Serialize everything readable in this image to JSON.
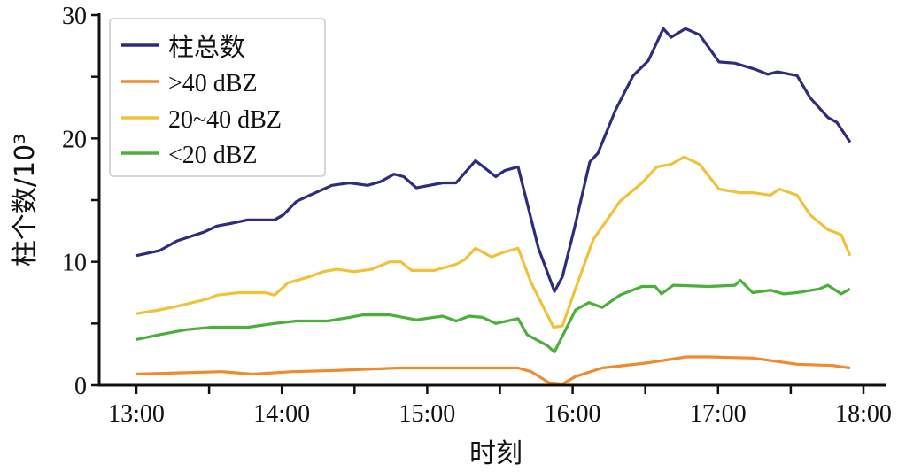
{
  "chart_data": {
    "type": "line",
    "title": "",
    "xlabel": "时刻",
    "ylabel": "柱个数/10³",
    "ylim": [
      0,
      30
    ],
    "xlim_minutes_after_1300": [
      0,
      300
    ],
    "xticks": [
      "13:00",
      "14:00",
      "15:00",
      "16:00",
      "17:00",
      "18:00"
    ],
    "yticks": [
      "0",
      "10",
      "20",
      "30"
    ],
    "legend_position": "top-left",
    "grid": false,
    "series": [
      {
        "name": "柱总数",
        "color": "#2f2c7e",
        "points": [
          [
            0,
            10.5
          ],
          [
            9.5,
            10.9
          ],
          [
            16.8,
            11.7
          ],
          [
            27.8,
            12.4
          ],
          [
            33.2,
            12.9
          ],
          [
            38.7,
            13.1
          ],
          [
            46,
            13.4
          ],
          [
            57,
            13.4
          ],
          [
            60.6,
            13.8
          ],
          [
            66.1,
            14.9
          ],
          [
            71.6,
            15.4
          ],
          [
            80.7,
            16.2
          ],
          [
            88,
            16.4
          ],
          [
            95.4,
            16.2
          ],
          [
            100.8,
            16.5
          ],
          [
            106.3,
            17.1
          ],
          [
            110.3,
            16.9
          ],
          [
            115.5,
            16.0
          ],
          [
            126.4,
            16.4
          ],
          [
            131.9,
            16.4
          ],
          [
            139.9,
            18.2
          ],
          [
            148.3,
            16.9
          ],
          [
            152,
            17.4
          ],
          [
            157.5,
            17.7
          ],
          [
            165.9,
            11.1
          ],
          [
            172.5,
            7.6
          ],
          [
            175.8,
            8.8
          ],
          [
            180.6,
            12.6
          ],
          [
            187.1,
            18.1
          ],
          [
            190.4,
            18.8
          ],
          [
            197.7,
            22.3
          ],
          [
            205,
            25.1
          ],
          [
            211.2,
            26.3
          ],
          [
            217.4,
            28.9
          ],
          [
            220.6,
            28.2
          ],
          [
            226.6,
            28.9
          ],
          [
            232.4,
            28.4
          ],
          [
            240.4,
            26.2
          ],
          [
            247,
            26.1
          ],
          [
            255.4,
            25.6
          ],
          [
            260.5,
            25.2
          ],
          [
            264.5,
            25.4
          ],
          [
            272.6,
            25.1
          ],
          [
            278,
            23.3
          ],
          [
            285.3,
            21.7
          ],
          [
            289,
            21.3
          ],
          [
            294.5,
            19.7
          ]
        ]
      },
      {
        "name": ">40 dBZ",
        "color": "#f08a2e",
        "points": [
          [
            0,
            0.9
          ],
          [
            16.8,
            1.0
          ],
          [
            35.1,
            1.1
          ],
          [
            47.9,
            0.9
          ],
          [
            64.3,
            1.1
          ],
          [
            82.6,
            1.2
          ],
          [
            108.2,
            1.4
          ],
          [
            141.1,
            1.4
          ],
          [
            157.5,
            1.4
          ],
          [
            162.9,
            1.1
          ],
          [
            170.2,
            0.2
          ],
          [
            175.8,
            0.1
          ],
          [
            181.2,
            0.7
          ],
          [
            192.2,
            1.4
          ],
          [
            210.4,
            1.8
          ],
          [
            226.9,
            2.3
          ],
          [
            236.1,
            2.3
          ],
          [
            254.3,
            2.2
          ],
          [
            272.6,
            1.7
          ],
          [
            287.2,
            1.6
          ],
          [
            294.5,
            1.4
          ]
        ]
      },
      {
        "name": "20~40 dBZ",
        "color": "#f0c23a",
        "points": [
          [
            0,
            5.8
          ],
          [
            9.5,
            6.1
          ],
          [
            16.8,
            6.4
          ],
          [
            29.6,
            7.0
          ],
          [
            33.2,
            7.3
          ],
          [
            42.4,
            7.5
          ],
          [
            53.3,
            7.5
          ],
          [
            57,
            7.3
          ],
          [
            62.5,
            8.3
          ],
          [
            71.6,
            8.8
          ],
          [
            77.1,
            9.2
          ],
          [
            82.6,
            9.4
          ],
          [
            89.9,
            9.2
          ],
          [
            97.2,
            9.4
          ],
          [
            104.5,
            10.0
          ],
          [
            109.2,
            10.0
          ],
          [
            113.6,
            9.3
          ],
          [
            122.8,
            9.3
          ],
          [
            131.9,
            9.8
          ],
          [
            135.6,
            10.2
          ],
          [
            139.9,
            11.1
          ],
          [
            146.5,
            10.4
          ],
          [
            152,
            10.8
          ],
          [
            157.5,
            11.1
          ],
          [
            162.9,
            8.3
          ],
          [
            172.1,
            4.7
          ],
          [
            175.8,
            4.8
          ],
          [
            180.6,
            7.5
          ],
          [
            188.5,
            11.8
          ],
          [
            199.5,
            14.9
          ],
          [
            208.6,
            16.4
          ],
          [
            214.8,
            17.7
          ],
          [
            220.6,
            17.9
          ],
          [
            226,
            18.5
          ],
          [
            232.4,
            17.9
          ],
          [
            240.4,
            15.9
          ],
          [
            248.8,
            15.6
          ],
          [
            254.3,
            15.6
          ],
          [
            261.6,
            15.4
          ],
          [
            265.3,
            15.9
          ],
          [
            272.6,
            15.4
          ],
          [
            278,
            13.8
          ],
          [
            285.3,
            12.6
          ],
          [
            290.8,
            12.2
          ],
          [
            294.5,
            10.5
          ]
        ]
      },
      {
        "name": "<20 dBZ",
        "color": "#4caf3c",
        "points": [
          [
            0,
            3.7
          ],
          [
            9.5,
            4.1
          ],
          [
            20.5,
            4.5
          ],
          [
            31.4,
            4.7
          ],
          [
            46,
            4.7
          ],
          [
            57,
            5.0
          ],
          [
            66.1,
            5.2
          ],
          [
            78.9,
            5.2
          ],
          [
            88,
            5.5
          ],
          [
            93.5,
            5.7
          ],
          [
            104.5,
            5.7
          ],
          [
            115.5,
            5.3
          ],
          [
            126.4,
            5.6
          ],
          [
            131.9,
            5.2
          ],
          [
            137.4,
            5.6
          ],
          [
            142.9,
            5.5
          ],
          [
            148.3,
            5.0
          ],
          [
            157.5,
            5.4
          ],
          [
            161.2,
            4.1
          ],
          [
            169.6,
            3.2
          ],
          [
            172.5,
            2.7
          ],
          [
            181.2,
            6.1
          ],
          [
            186.7,
            6.7
          ],
          [
            192.2,
            6.3
          ],
          [
            199.5,
            7.3
          ],
          [
            208.6,
            8.0
          ],
          [
            214.1,
            8.0
          ],
          [
            216.7,
            7.4
          ],
          [
            221.5,
            8.1
          ],
          [
            236.1,
            8.0
          ],
          [
            247,
            8.1
          ],
          [
            249.2,
            8.5
          ],
          [
            254.3,
            7.5
          ],
          [
            261.6,
            7.7
          ],
          [
            267.1,
            7.4
          ],
          [
            272.6,
            7.5
          ],
          [
            281.7,
            7.8
          ],
          [
            285.3,
            8.1
          ],
          [
            290.8,
            7.4
          ],
          [
            294.5,
            7.8
          ]
        ]
      }
    ]
  }
}
